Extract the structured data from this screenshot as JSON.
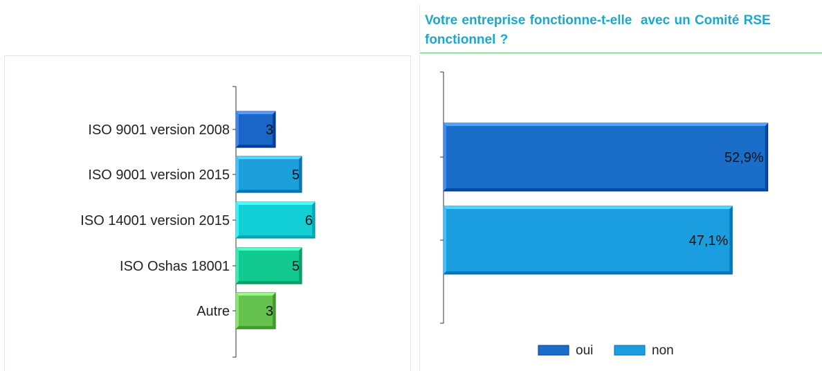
{
  "colors": {
    "title": "#1ba8cf",
    "axis": "#333333",
    "left_bars": [
      "#1a66c6",
      "#1d9fdc",
      "#12cfd6",
      "#12c98f",
      "#66c24f"
    ],
    "right_bars": [
      "#1a6ec9",
      "#1a9ee0"
    ]
  },
  "charts": {
    "left": {
      "type": "bar"
    },
    "right": {
      "title": "Votre entreprise fonctionne-t-elle  avec un Comité RSE fonctionnel ?",
      "legend_position": "bottom"
    }
  },
  "chart_data": [
    {
      "type": "bar",
      "orientation": "horizontal",
      "categories": [
        "ISO 9001 version 2008",
        "ISO 9001 version 2015",
        "ISO 14001 version 2015",
        "ISO Oshas 18001",
        "Autre"
      ],
      "values": [
        3,
        5,
        6,
        5,
        3
      ],
      "data_labels": [
        "3",
        "5",
        "6",
        "5",
        "3"
      ],
      "grid": false,
      "legend": false
    },
    {
      "type": "bar",
      "orientation": "horizontal",
      "title": "Votre entreprise fonctionne-t-elle  avec un Comité RSE fonctionnel ?",
      "series": [
        {
          "name": "oui",
          "values": [
            52.9
          ]
        },
        {
          "name": "non",
          "values": [
            47.1
          ]
        }
      ],
      "data_labels": [
        "52,9%",
        "47,1%"
      ],
      "legend_entries": [
        "oui",
        "non"
      ],
      "legend_position": "bottom",
      "grid": false
    }
  ]
}
